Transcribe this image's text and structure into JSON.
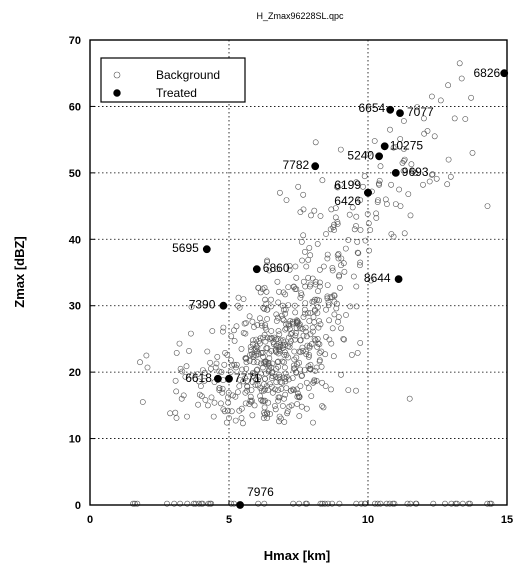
{
  "chart_data": {
    "type": "scatter",
    "title": "H_Zmax96228SL.qpc",
    "xlabel": "Hmax  [km]",
    "ylabel": "Zmax [dBZ]",
    "xlim": [
      0,
      15
    ],
    "ylim": [
      0,
      70
    ],
    "xticks": [
      0,
      5,
      10,
      15
    ],
    "yticks": [
      0,
      10,
      20,
      30,
      40,
      50,
      60,
      70
    ],
    "grid": true,
    "legend_position": "top-left",
    "series": [
      {
        "name": "Background",
        "marker": "open-circle",
        "color": "#555555",
        "point_count_note": "",
        "x": [],
        "y": []
      },
      {
        "name": "Treated",
        "marker": "filled-circle",
        "color": "#000000",
        "points": [
          {
            "label": "6826",
            "x": 14.9,
            "y": 65.0
          },
          {
            "label": "6654",
            "x": 10.8,
            "y": 59.5
          },
          {
            "label": "7077",
            "x": 11.15,
            "y": 59.0
          },
          {
            "label": "10275",
            "x": 10.6,
            "y": 54.0
          },
          {
            "label": "5240",
            "x": 10.4,
            "y": 52.5
          },
          {
            "label": "7782",
            "x": 8.1,
            "y": 51.0
          },
          {
            "label": "9693",
            "x": 11.0,
            "y": 50.0
          },
          {
            "label": "6199",
            "x": 10.0,
            "y": 47.0
          },
          {
            "label": "6426",
            "x": 10.0,
            "y": 47.0
          },
          {
            "label": "5695",
            "x": 4.2,
            "y": 38.5
          },
          {
            "label": "6860",
            "x": 6.0,
            "y": 35.5
          },
          {
            "label": "8644",
            "x": 11.1,
            "y": 34.0
          },
          {
            "label": "7390",
            "x": 4.8,
            "y": 30.0
          },
          {
            "label": "6618",
            "x": 4.6,
            "y": 19.0
          },
          {
            "label": "7771",
            "x": 5.0,
            "y": 19.0
          },
          {
            "label": "7976",
            "x": 5.4,
            "y": 0.0
          }
        ]
      }
    ]
  }
}
